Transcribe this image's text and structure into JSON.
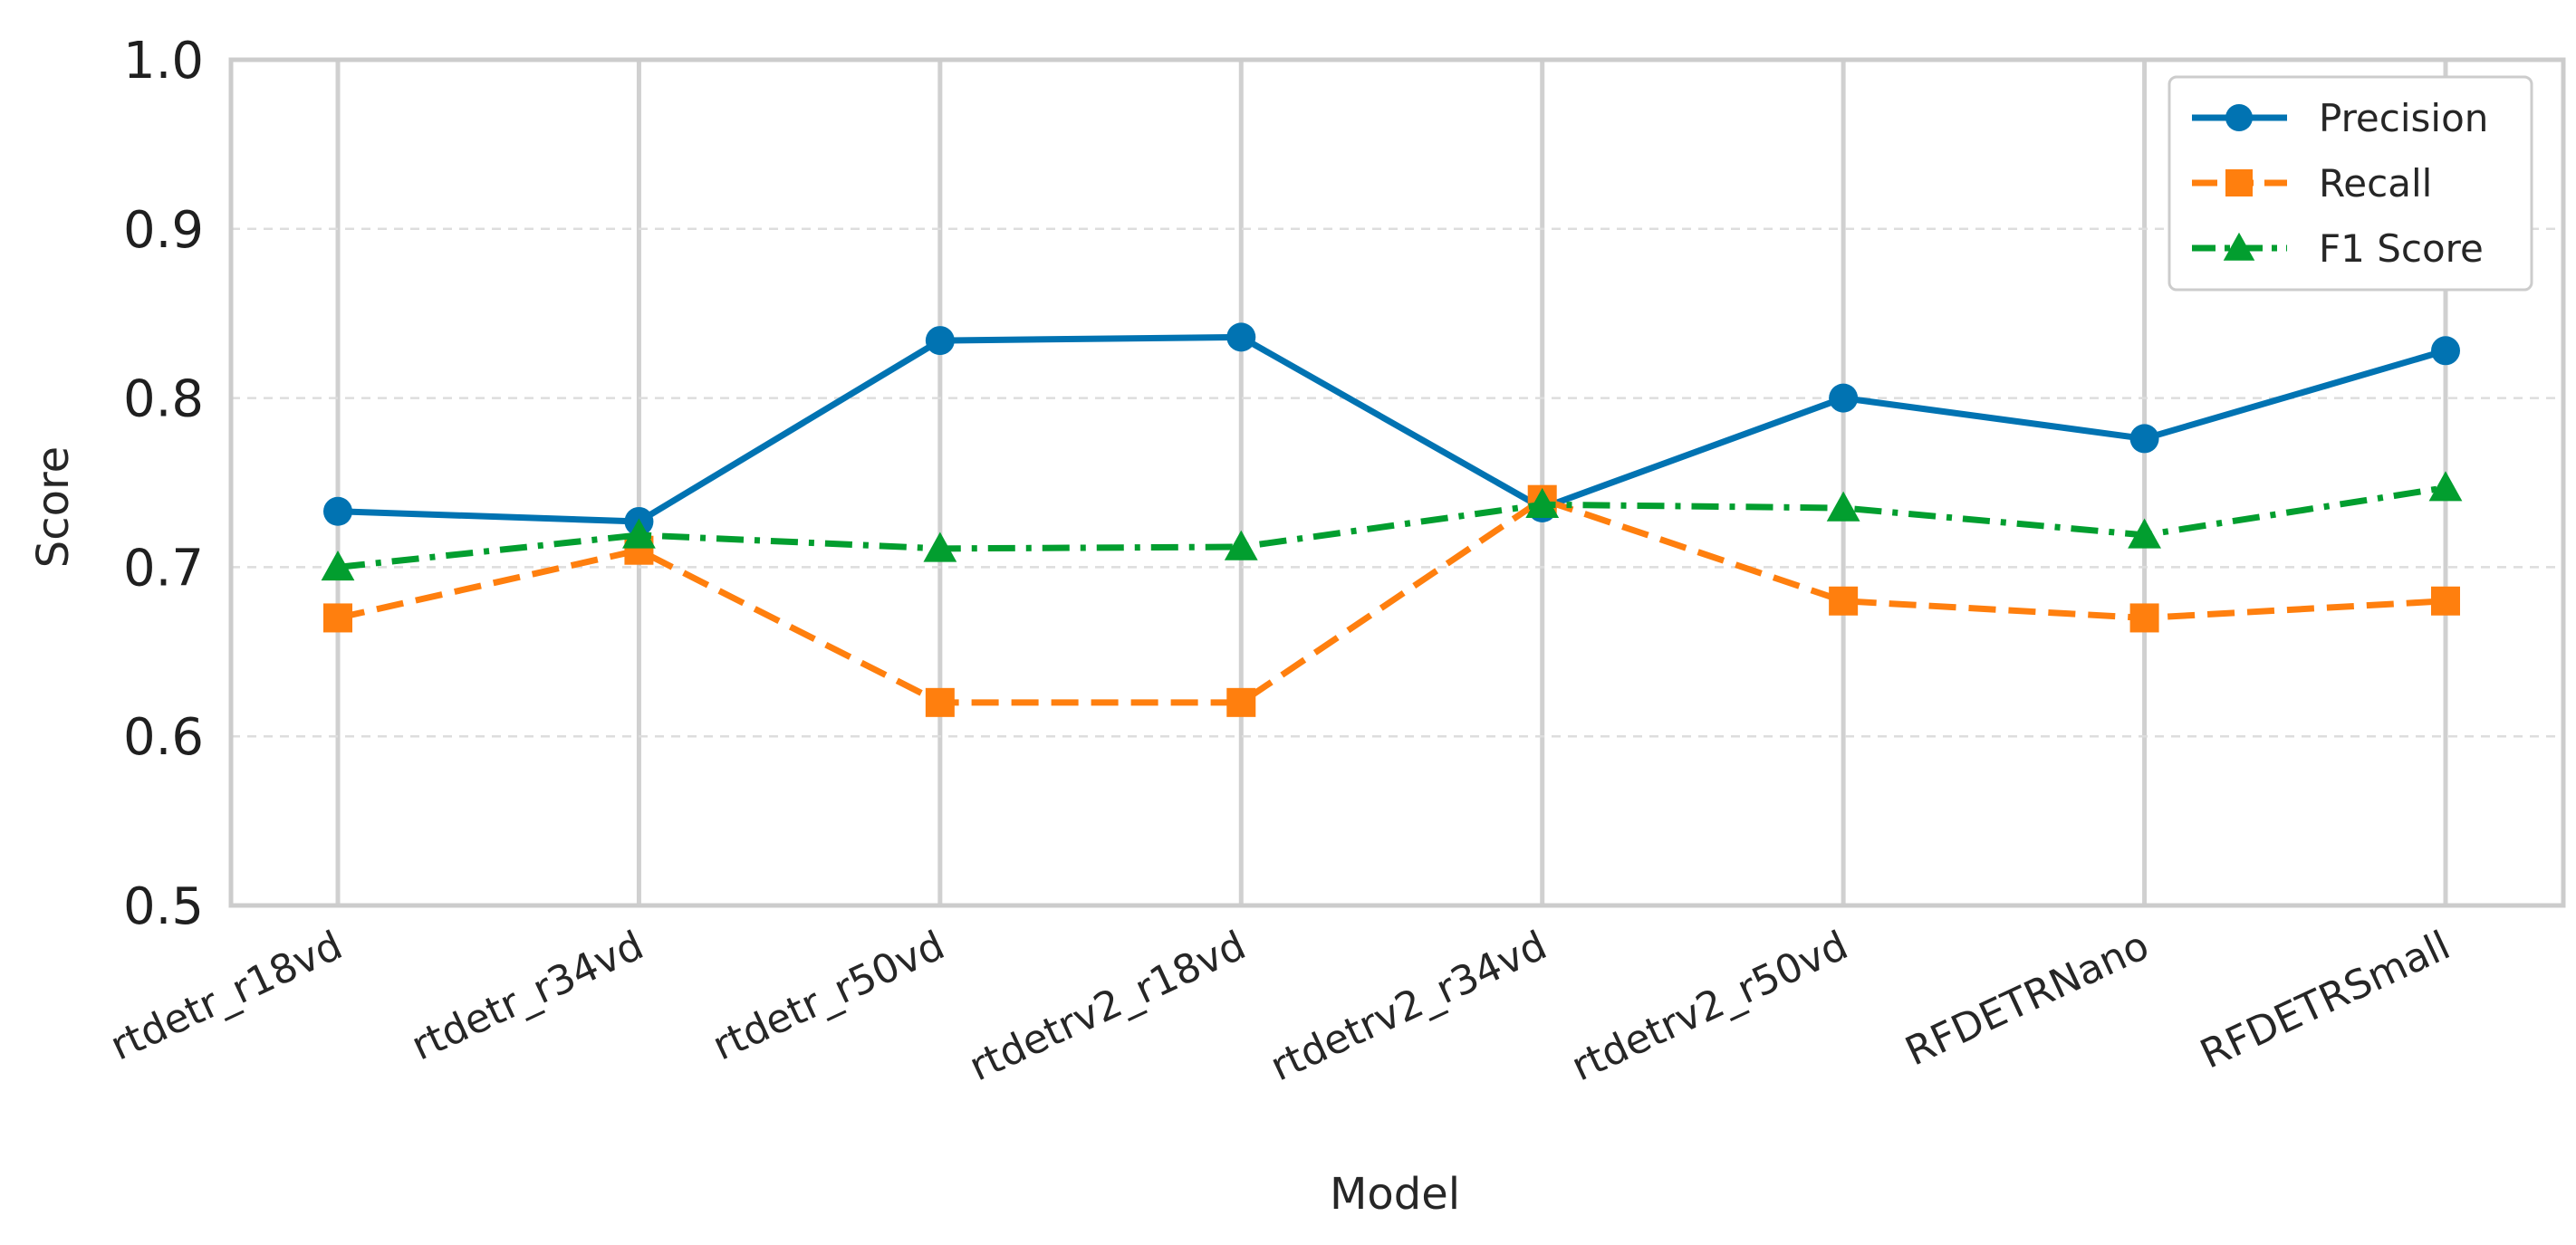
{
  "chart_data": {
    "type": "line",
    "title": "",
    "xlabel": "Model",
    "ylabel": "Score",
    "ylim": [
      0.5,
      1.0
    ],
    "yticks": [
      "0.5",
      "0.6",
      "0.7",
      "0.8",
      "0.9",
      "1.0"
    ],
    "ytick_values": [
      0.5,
      0.6,
      0.7,
      0.8,
      0.9,
      1.0
    ],
    "categories": [
      "rtdetr_r18vd",
      "rtdetr_r34vd",
      "rtdetr_r50vd",
      "rtdetrv2_r18vd",
      "rtdetrv2_r34vd",
      "rtdetrv2_r50vd",
      "RFDETRNano",
      "RFDETRSmall"
    ],
    "grid": true,
    "legend_position": "top-right",
    "series": [
      {
        "name": "Precision",
        "values": [
          0.733,
          0.727,
          0.834,
          0.836,
          0.735,
          0.8,
          0.776,
          0.828
        ],
        "color": "#0173b2",
        "marker": "circle",
        "linestyle": "solid"
      },
      {
        "name": "Recall",
        "values": [
          0.67,
          0.71,
          0.62,
          0.62,
          0.74,
          0.68,
          0.67,
          0.68
        ],
        "color": "#ff7f0e",
        "marker": "square",
        "linestyle": "dashed"
      },
      {
        "name": "F1 Score",
        "values": [
          0.7,
          0.719,
          0.711,
          0.712,
          0.737,
          0.735,
          0.719,
          0.747
        ],
        "color": "#029e2f",
        "marker": "triangle",
        "linestyle": "dashdot"
      }
    ]
  }
}
